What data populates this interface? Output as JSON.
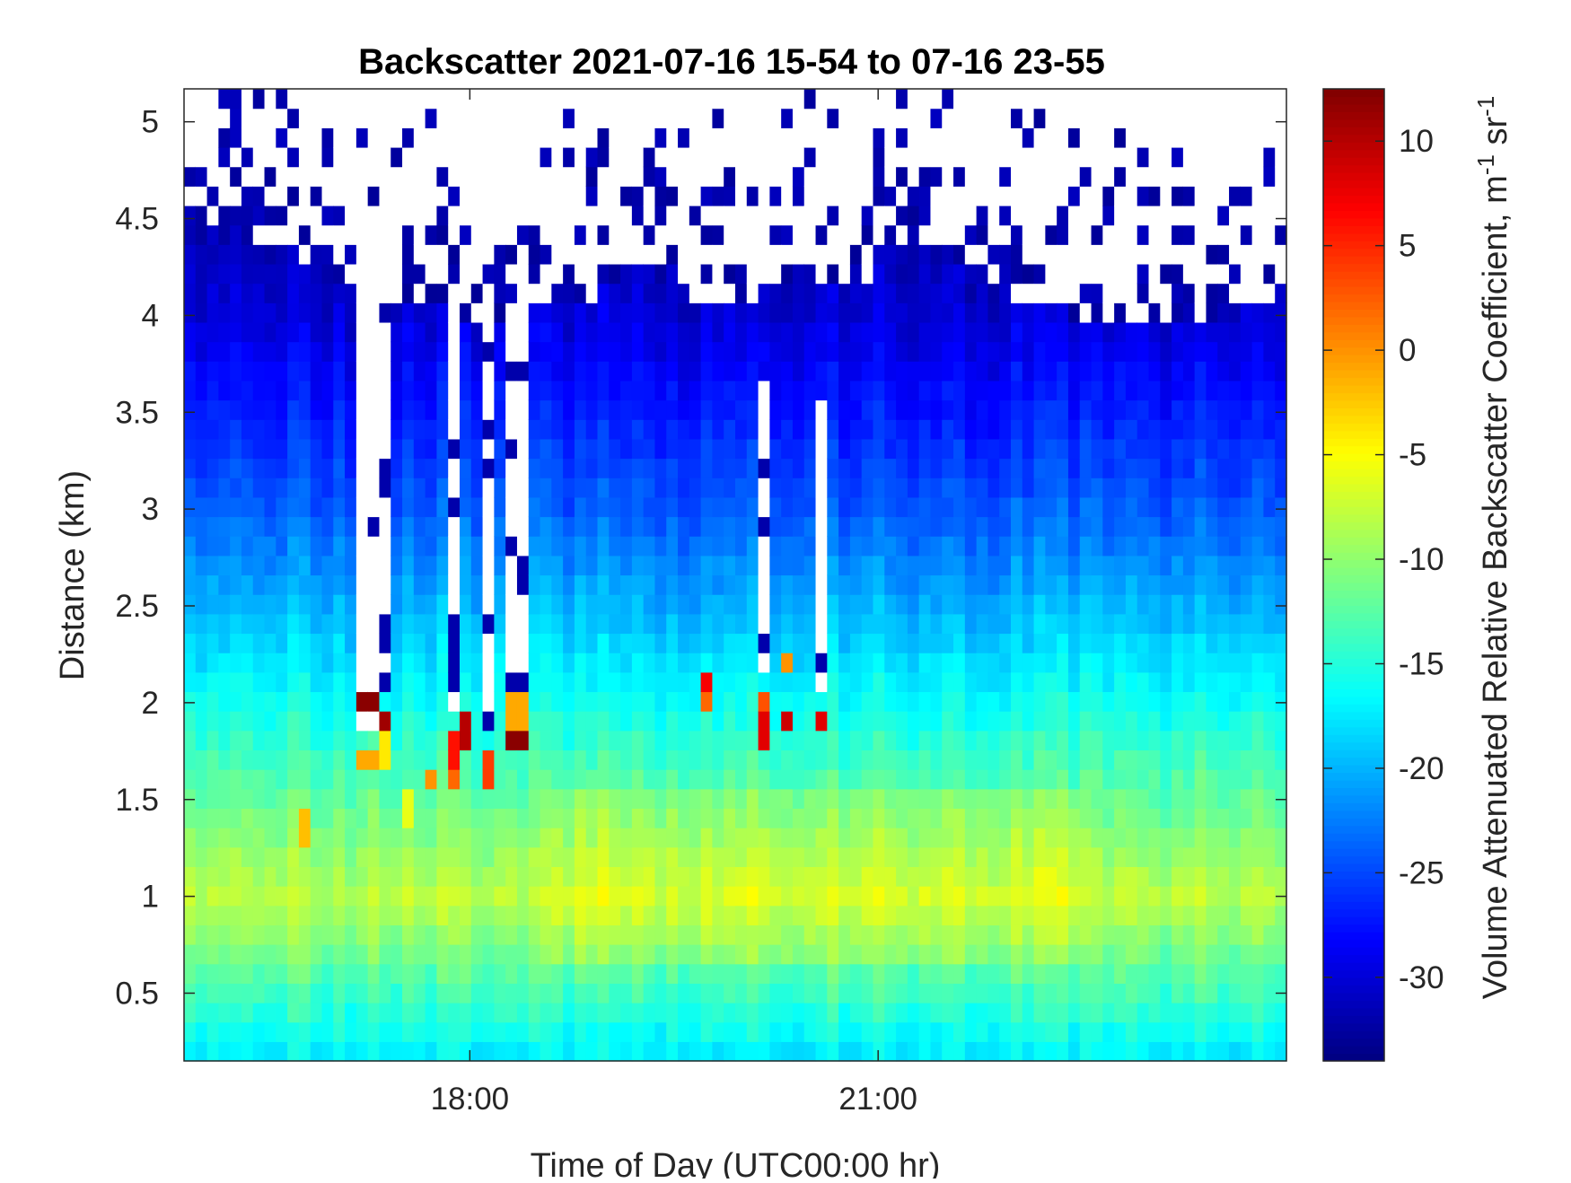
{
  "chart_data": {
    "type": "heatmap",
    "title": "Backscatter 2021-07-16 15-54 to 07-16 23-55",
    "xlabel": "Time of Day (UTC00:00 hr)",
    "ylabel": "Distance (km)",
    "colorbar_label": "Volume Attenuated Relative Backscatter Coefficient, m",
    "colorbar_unit_m_exp": "-1",
    "colorbar_unit_sr": " sr",
    "colorbar_unit_sr_exp": "-1",
    "colormap": "jet",
    "xlim_hours": [
      15.9,
      24.0
    ],
    "ylim": [
      0.15,
      5.17
    ],
    "clim": [
      -34,
      12.5
    ],
    "x_ticks": [
      {
        "value": 18,
        "label": "18:00"
      },
      {
        "value": 21,
        "label": "21:00"
      }
    ],
    "y_ticks": [
      {
        "value": 0.5,
        "label": "0.5"
      },
      {
        "value": 1,
        "label": "1"
      },
      {
        "value": 1.5,
        "label": "1.5"
      },
      {
        "value": 2,
        "label": "2"
      },
      {
        "value": 2.5,
        "label": "2.5"
      },
      {
        "value": 3,
        "label": "3"
      },
      {
        "value": 3.5,
        "label": "3.5"
      },
      {
        "value": 4,
        "label": "4"
      },
      {
        "value": 4.5,
        "label": "4.5"
      },
      {
        "value": 5,
        "label": "5"
      }
    ],
    "colorbar_ticks": [
      {
        "value": 10,
        "label": "10"
      },
      {
        "value": 5,
        "label": "5"
      },
      {
        "value": 0,
        "label": "0"
      },
      {
        "value": -5,
        "label": "-5"
      },
      {
        "value": -10,
        "label": "-10"
      },
      {
        "value": -15,
        "label": "-15"
      },
      {
        "value": -20,
        "label": "-20"
      },
      {
        "value": -25,
        "label": "-25"
      },
      {
        "value": -30,
        "label": "-30"
      }
    ],
    "grid": false,
    "time_bins": 96,
    "distance_bins": 50,
    "field_description_by_height": [
      {
        "distance_km": 0.2,
        "value": -17
      },
      {
        "distance_km": 1.0,
        "value": -8
      },
      {
        "distance_km": 1.5,
        "value": -12
      },
      {
        "distance_km": 2.0,
        "value": -16
      },
      {
        "distance_km": 2.5,
        "value": -20
      },
      {
        "distance_km": 3.0,
        "value": -24
      },
      {
        "distance_km": 3.5,
        "value": -27
      },
      {
        "distance_km": 4.0,
        "value": -30
      },
      {
        "distance_km": 4.5,
        "value": -32
      }
    ],
    "no_data_gaps": [
      {
        "time_hours": 17.25,
        "from_km": 1.85,
        "to_km": 4.5
      },
      {
        "time_hours": 17.4,
        "from_km": 2.05,
        "to_km": 4.35
      },
      {
        "time_hours": 17.85,
        "from_km": 1.95,
        "to_km": 4.15
      },
      {
        "time_hours": 18.1,
        "from_km": 1.85,
        "to_km": 4.15
      },
      {
        "time_hours": 18.35,
        "from_km": 2.05,
        "to_km": 4.1
      },
      {
        "time_hours": 20.15,
        "from_km": 2.15,
        "to_km": 3.65
      },
      {
        "time_hours": 20.55,
        "from_km": 2.05,
        "to_km": 3.6
      }
    ],
    "hot_spots": [
      {
        "time_hours": 16.75,
        "distance_km": 1.35,
        "value": -2
      },
      {
        "time_hours": 17.25,
        "distance_km": 2.0,
        "value": 12
      },
      {
        "time_hours": 17.25,
        "distance_km": 1.7,
        "value": -1
      },
      {
        "time_hours": 17.4,
        "distance_km": 1.9,
        "value": 11
      },
      {
        "time_hours": 17.4,
        "distance_km": 1.75,
        "value": -4
      },
      {
        "time_hours": 17.55,
        "distance_km": 1.45,
        "value": -6
      },
      {
        "time_hours": 17.7,
        "distance_km": 1.6,
        "value": 0
      },
      {
        "time_hours": 17.85,
        "distance_km": 1.75,
        "value": 6
      },
      {
        "time_hours": 17.85,
        "distance_km": 1.6,
        "value": 2
      },
      {
        "time_hours": 17.95,
        "distance_km": 1.85,
        "value": 10
      },
      {
        "time_hours": 18.1,
        "distance_km": 1.65,
        "value": 4
      },
      {
        "time_hours": 18.35,
        "distance_km": 1.85,
        "value": 12
      },
      {
        "time_hours": 18.35,
        "distance_km": 1.95,
        "value": -1
      },
      {
        "time_hours": 19.75,
        "distance_km": 2.1,
        "value": 7
      },
      {
        "time_hours": 19.75,
        "distance_km": 2.0,
        "value": 2
      },
      {
        "time_hours": 20.15,
        "distance_km": 1.85,
        "value": 8
      },
      {
        "time_hours": 20.15,
        "distance_km": 2.0,
        "value": 3
      },
      {
        "time_hours": 20.3,
        "distance_km": 1.9,
        "value": 9
      },
      {
        "time_hours": 20.3,
        "distance_km": 2.2,
        "value": 0
      },
      {
        "time_hours": 20.55,
        "distance_km": 1.9,
        "value": 8
      }
    ],
    "colors": {
      "no_data": "#ffffff",
      "axes": "#262626",
      "background": "#ffffff"
    }
  }
}
